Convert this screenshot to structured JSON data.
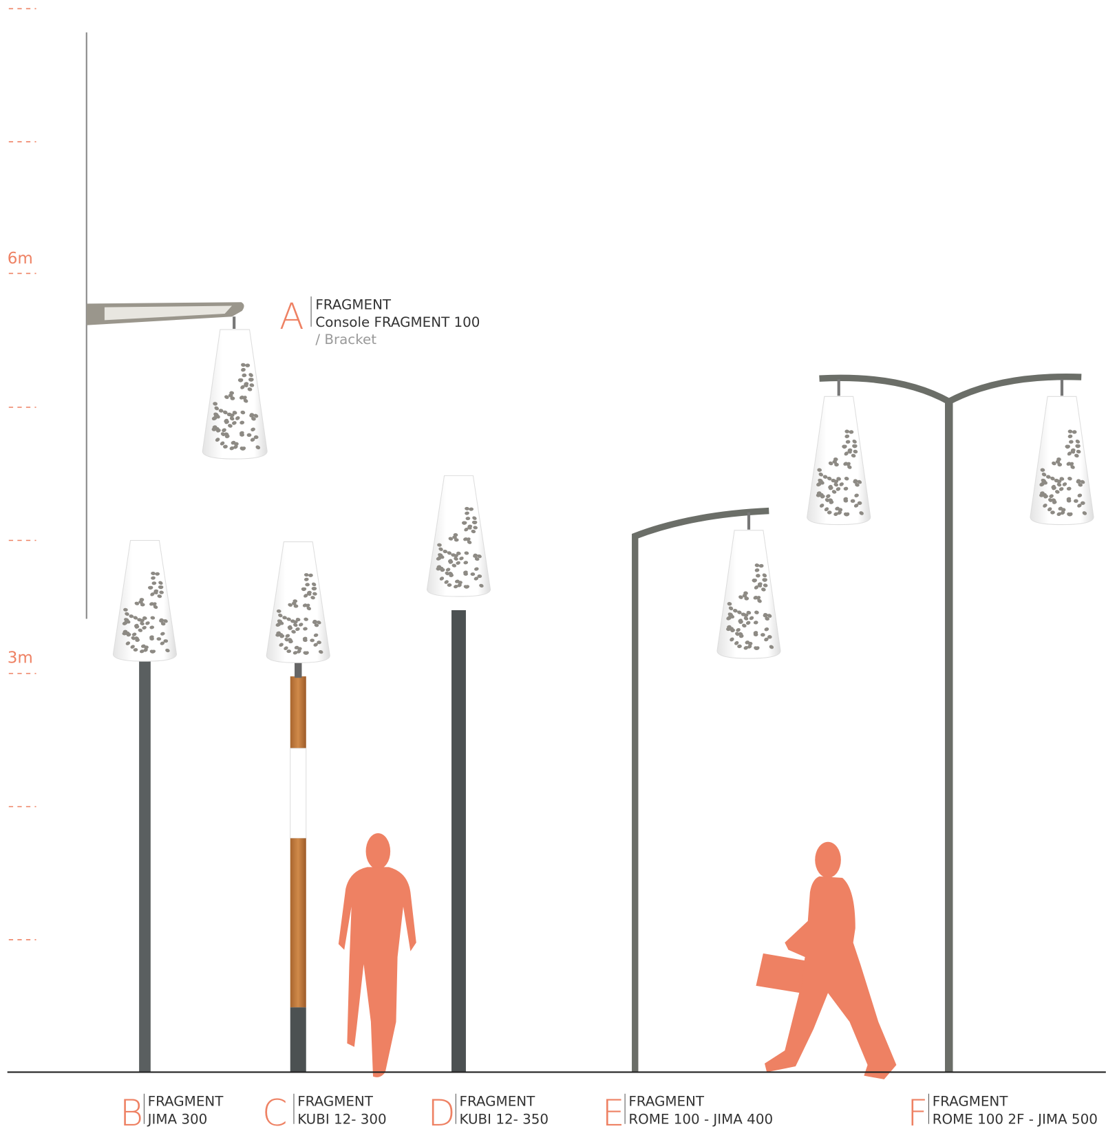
{
  "scale_labels": [
    "6m",
    "3m"
  ],
  "products": [
    {
      "letter": "A",
      "lines": [
        "FRAGMENT",
        "Console FRAGMENT 100",
        "/ Bracket"
      ]
    },
    {
      "letter": "B",
      "lines": [
        "FRAGMENT",
        "JIMA 300"
      ]
    },
    {
      "letter": "C",
      "lines": [
        "FRAGMENT",
        "KUBI 12- 300"
      ]
    },
    {
      "letter": "D",
      "lines": [
        "FRAGMENT",
        "KUBI 12- 350"
      ]
    },
    {
      "letter": "E",
      "lines": [
        "FRAGMENT",
        "ROME 100 - JIMA 400"
      ]
    },
    {
      "letter": "F",
      "lines": [
        "FRAGMENT",
        "ROME 100 2F - JIMA 500"
      ]
    }
  ]
}
